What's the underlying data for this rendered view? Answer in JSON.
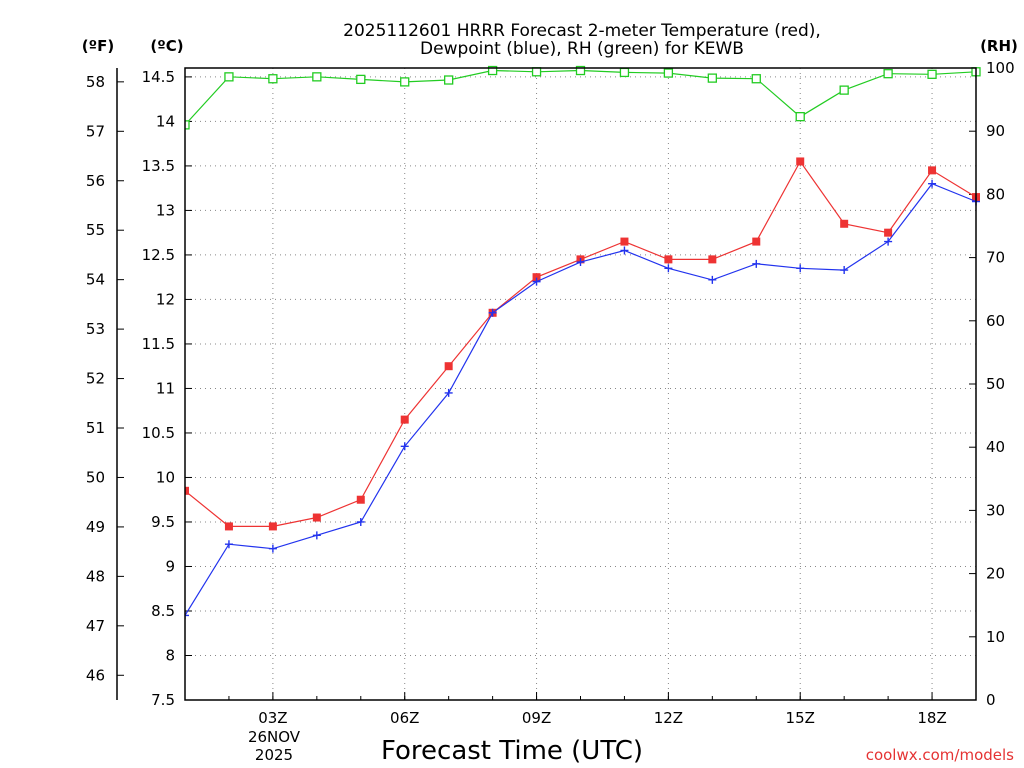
{
  "chart_data": {
    "type": "line",
    "title_line1": "2025112601 HRRR Forecast 2-meter Temperature (red),",
    "title_line2": "Dewpoint (blue), RH (green) for KEWB",
    "xlabel": "Forecast Time (UTC)",
    "credit": "coolwx.com/models",
    "units": {
      "fahrenheit": "(ºF)",
      "celsius": "(ºC)",
      "rh": "(RH)"
    },
    "x_hours": [
      1,
      2,
      3,
      4,
      5,
      6,
      7,
      8,
      9,
      10,
      11,
      12,
      13,
      14,
      15,
      16,
      17,
      18,
      19
    ],
    "xlim": [
      1,
      19
    ],
    "x_ticks": [
      {
        "hour": 3,
        "label": "03Z"
      },
      {
        "hour": 6,
        "label": "06Z"
      },
      {
        "hour": 9,
        "label": "09Z"
      },
      {
        "hour": 12,
        "label": "12Z"
      },
      {
        "hour": 15,
        "label": "15Z"
      },
      {
        "hour": 18,
        "label": "18Z"
      }
    ],
    "date_label": {
      "hour": 3,
      "line1": "26NOV",
      "line2": "2025"
    },
    "celsius_axis": {
      "lim": [
        7.5,
        14.6
      ],
      "ticks": [
        7.5,
        8,
        8.5,
        9,
        9.5,
        10,
        10.5,
        11,
        11.5,
        12,
        12.5,
        13,
        13.5,
        14,
        14.5
      ],
      "tick_labels": [
        "7.5",
        "8",
        "8.5",
        "9",
        "9.5",
        "10",
        "10.5",
        "11",
        "11.5",
        "12",
        "12.5",
        "13",
        "13.5",
        "14",
        "14.5"
      ]
    },
    "fahrenheit_axis": {
      "ticks": [
        46,
        47,
        48,
        49,
        50,
        51,
        52,
        53,
        54,
        55,
        56,
        57,
        58
      ]
    },
    "rh_axis": {
      "lim": [
        0,
        100
      ],
      "ticks": [
        0,
        10,
        20,
        30,
        40,
        50,
        60,
        70,
        80,
        90,
        100
      ]
    },
    "series": [
      {
        "name": "Temperature",
        "axis": "celsius",
        "color": "#ee3333",
        "marker": "filled-square",
        "values": [
          9.85,
          9.45,
          9.45,
          9.55,
          9.75,
          10.65,
          11.25,
          11.85,
          12.25,
          12.45,
          12.65,
          12.45,
          12.45,
          12.65,
          13.55,
          12.85,
          12.75,
          13.45,
          13.15
        ]
      },
      {
        "name": "Dewpoint",
        "axis": "celsius",
        "color": "#2233ee",
        "marker": "plus",
        "values": [
          8.45,
          9.25,
          9.2,
          9.35,
          9.5,
          10.35,
          10.95,
          11.85,
          12.2,
          12.42,
          12.55,
          12.35,
          12.22,
          12.4,
          12.35,
          12.33,
          12.65,
          13.3,
          13.1
        ]
      },
      {
        "name": "RH",
        "axis": "rh",
        "color": "#22cc22",
        "marker": "open-square",
        "values": [
          91,
          98.6,
          98.3,
          98.6,
          98.2,
          97.8,
          98.1,
          99.6,
          99.4,
          99.6,
          99.3,
          99.2,
          98.4,
          98.3,
          92.3,
          96.5,
          99.1,
          99,
          99.4
        ]
      }
    ]
  }
}
